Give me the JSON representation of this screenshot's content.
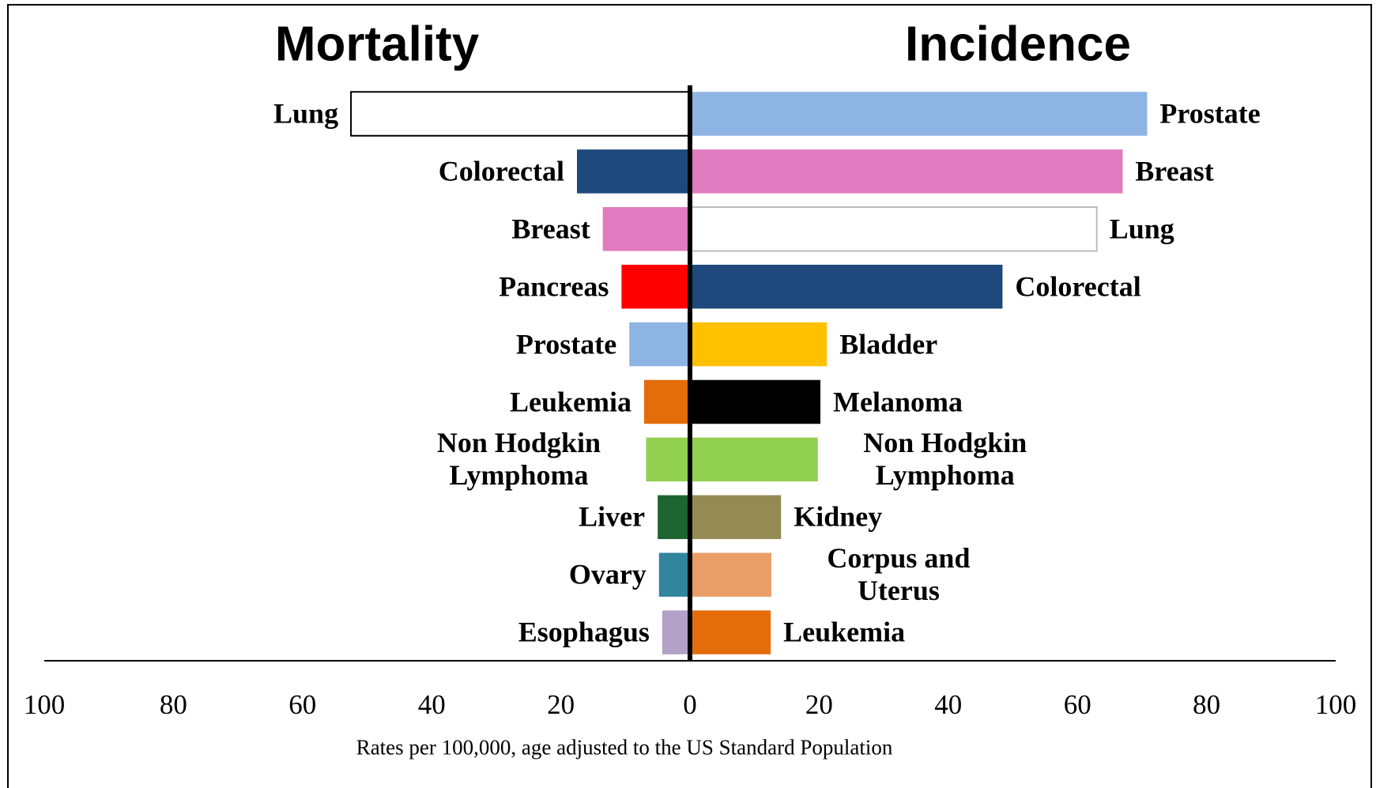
{
  "chart_data": [
    {
      "type": "bar",
      "orientation": "horizontal",
      "direction": "left",
      "title": "Mortality",
      "categories": [
        "Lung",
        "Colorectal",
        "Breast",
        "Pancreas",
        "Prostate",
        "Leukemia",
        "Non Hodgkin Lymphoma",
        "Liver",
        "Ovary",
        "Esophagus"
      ],
      "values": [
        52.5,
        17.5,
        13.5,
        10.6,
        9.4,
        7.1,
        6.8,
        5.0,
        4.8,
        4.3
      ],
      "colors": [
        "#ffffff",
        "#1f497d",
        "#e07bbf",
        "#ff0000",
        "#8eb4e3",
        "#e46c0a",
        "#92d050",
        "#1e6430",
        "#31859c",
        "#b3a2c7"
      ],
      "xlim": [
        0,
        100
      ],
      "xticks": [
        0,
        20,
        40,
        60,
        80,
        100
      ]
    },
    {
      "type": "bar",
      "orientation": "horizontal",
      "direction": "right",
      "title": "Incidence",
      "categories": [
        "Prostate",
        "Breast",
        "Lung",
        "Colorectal",
        "Bladder",
        "Melanoma",
        "Non Hodgkin Lymphoma",
        "Kidney",
        "Corpus and Uterus",
        "Leukemia"
      ],
      "values": [
        70.8,
        67.0,
        63.0,
        48.4,
        21.2,
        20.2,
        19.8,
        14.1,
        12.6,
        12.5
      ],
      "colors": [
        "#8eb4e3",
        "#e07bbf",
        "#ffffff",
        "#1f497d",
        "#ffc000",
        "#000000",
        "#92d050",
        "#948a54",
        "#e99e68",
        "#e46c0a"
      ],
      "xlim": [
        0,
        100
      ],
      "xticks": [
        20,
        40,
        60,
        80,
        100
      ]
    }
  ],
  "caption": "Rates per 100,000, age adjusted to the US Standard Population"
}
